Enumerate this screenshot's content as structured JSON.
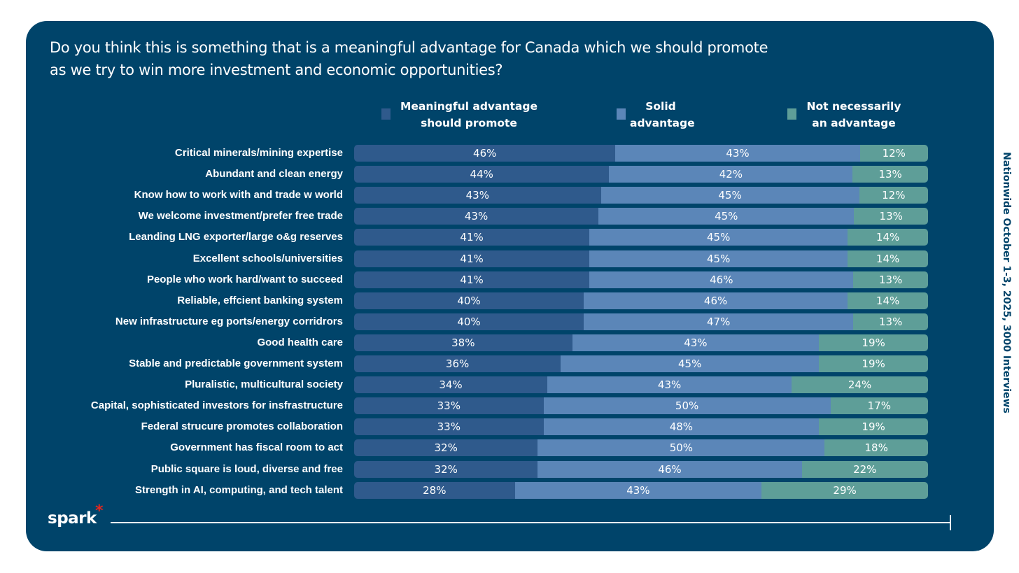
{
  "title": "Do you think this is something that is a meaningful advantage for Canada which we should promote as we try to win more investment and economic opportunities?",
  "source_note": "Nationwide October 1-3, 2025, 3000 Interviews",
  "logo": "spark",
  "colors": {
    "background": "#00446a",
    "meaningful": "#2f5a8c",
    "solid": "#5b86b8",
    "not": "#5e9e98"
  },
  "chart_data": {
    "type": "bar",
    "orientation": "horizontal-stacked",
    "title": "Do you think this is something that is a meaningful advantage for Canada which we should promote as we try to win more investment and economic opportunities?",
    "legend": [
      "Meaningful advantage should promote",
      "Solid advantage",
      "Not necessarily an advantage"
    ],
    "legend_position": "top",
    "categories": [
      "Critical minerals/mining expertise",
      "Abundant and clean energy",
      "Know how to work with and trade w world",
      "We welcome investment/prefer free trade",
      "Leanding LNG exporter/large o&g reserves",
      "Excellent schools/universities",
      "People who work hard/want to succeed",
      "Reliable, effcient banking system",
      "New infrastructure eg ports/energy corridrors",
      "Good health care",
      "Stable and predictable government system",
      "Pluralistic, multicultural society",
      "Capital, sophisticated investors for insfrastructure",
      "Federal strucure promotes collaboration",
      "Government has fiscal room to act",
      "Public square is loud, diverse and free",
      "Strength in AI, computing, and tech talent"
    ],
    "series": [
      {
        "name": "Meaningful advantage should promote",
        "values": [
          46,
          44,
          43,
          43,
          41,
          41,
          41,
          40,
          40,
          38,
          36,
          34,
          33,
          33,
          32,
          32,
          28
        ]
      },
      {
        "name": "Solid advantage",
        "values": [
          43,
          42,
          45,
          45,
          45,
          45,
          46,
          46,
          47,
          43,
          45,
          43,
          50,
          48,
          50,
          46,
          43
        ]
      },
      {
        "name": "Not necessarily an advantage",
        "values": [
          12,
          13,
          12,
          13,
          14,
          14,
          13,
          14,
          13,
          19,
          19,
          24,
          17,
          19,
          18,
          22,
          29
        ]
      }
    ],
    "unit": "%"
  }
}
